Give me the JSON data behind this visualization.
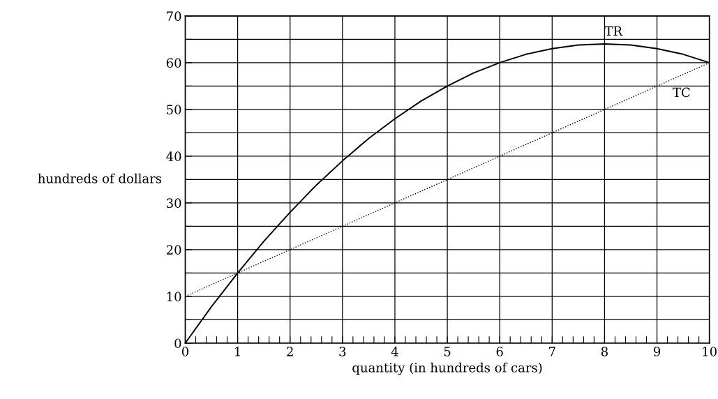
{
  "chart_data": {
    "type": "line",
    "xlabel": "quantity (in hundreds of cars)",
    "ylabel": "hundreds of dollars",
    "x": [
      0,
      0.5,
      1,
      1.5,
      2,
      2.5,
      3,
      3.5,
      4,
      4.5,
      5,
      5.5,
      6,
      6.5,
      7,
      7.5,
      8,
      8.5,
      9,
      9.5,
      10
    ],
    "series": [
      {
        "name": "TR",
        "color": "#000000",
        "line_style": "solid",
        "values": [
          0,
          7.8,
          15,
          21.8,
          28,
          33.8,
          39,
          43.8,
          48,
          51.8,
          55,
          57.8,
          60,
          61.8,
          63,
          63.8,
          64,
          63.8,
          63,
          61.8,
          60
        ]
      },
      {
        "name": "TC",
        "color": "#000000",
        "line_style": "dotted",
        "x": [
          0,
          10
        ],
        "values": [
          10,
          60
        ]
      }
    ],
    "xlim": [
      0,
      10
    ],
    "ylim": [
      0,
      70
    ],
    "xticks": [
      0,
      {
        "value": 0.2,
        "label": null
      },
      {
        "value": 0.4,
        "label": null
      },
      {
        "value": 0.6,
        "label": null
      },
      {
        "value": 0.8,
        "label": null
      },
      1,
      {
        "value": 1.2,
        "label": null
      },
      {
        "value": 1.4,
        "label": null
      },
      {
        "value": 1.6,
        "label": null
      },
      {
        "value": 1.8,
        "label": null
      },
      2,
      {
        "value": 2.2,
        "label": null
      },
      {
        "value": 2.4,
        "label": null
      },
      {
        "value": 2.6,
        "label": null
      },
      {
        "value": 2.8,
        "label": null
      },
      3,
      {
        "value": 3.2,
        "label": null
      },
      {
        "value": 3.4,
        "label": null
      },
      {
        "value": 3.6,
        "label": null
      },
      {
        "value": 3.8,
        "label": null
      },
      4,
      {
        "value": 4.2,
        "label": null
      },
      {
        "value": 4.4,
        "label": null
      },
      {
        "value": 4.6,
        "label": null
      },
      {
        "value": 4.8,
        "label": null
      },
      5,
      {
        "value": 5.2,
        "label": null
      },
      {
        "value": 5.4,
        "label": null
      },
      {
        "value": 5.6,
        "label": null
      },
      {
        "value": 5.8,
        "label": null
      },
      6,
      {
        "value": 6.2,
        "label": null
      },
      {
        "value": 6.4,
        "label": null
      },
      {
        "value": 6.6,
        "label": null
      },
      {
        "value": 6.8,
        "label": null
      },
      7,
      {
        "value": 7.2,
        "label": null
      },
      {
        "value": 7.4,
        "label": null
      },
      {
        "value": 7.6,
        "label": null
      },
      {
        "value": 7.8,
        "label": null
      },
      8,
      {
        "value": 8.2,
        "label": null
      },
      {
        "value": 8.4,
        "label": null
      },
      {
        "value": 8.6,
        "label": null
      },
      {
        "value": 8.8,
        "label": null
      },
      9,
      {
        "value": 9.2,
        "label": null
      },
      {
        "value": 9.4,
        "label": null
      },
      {
        "value": 9.6,
        "label": null
      },
      {
        "value": 9.8,
        "label": null
      },
      10
    ],
    "yticks": [
      0,
      {
        "value": 5,
        "label": null
      },
      10,
      {
        "value": 15,
        "label": null
      },
      20,
      {
        "value": 25,
        "label": null
      },
      30,
      {
        "value": 35,
        "label": null
      },
      40,
      {
        "value": 45,
        "label": null
      },
      50,
      {
        "value": 55,
        "label": null
      },
      60,
      {
        "value": 65,
        "label": null
      },
      70
    ],
    "grid": true,
    "legend": false,
    "marker": "none"
  }
}
